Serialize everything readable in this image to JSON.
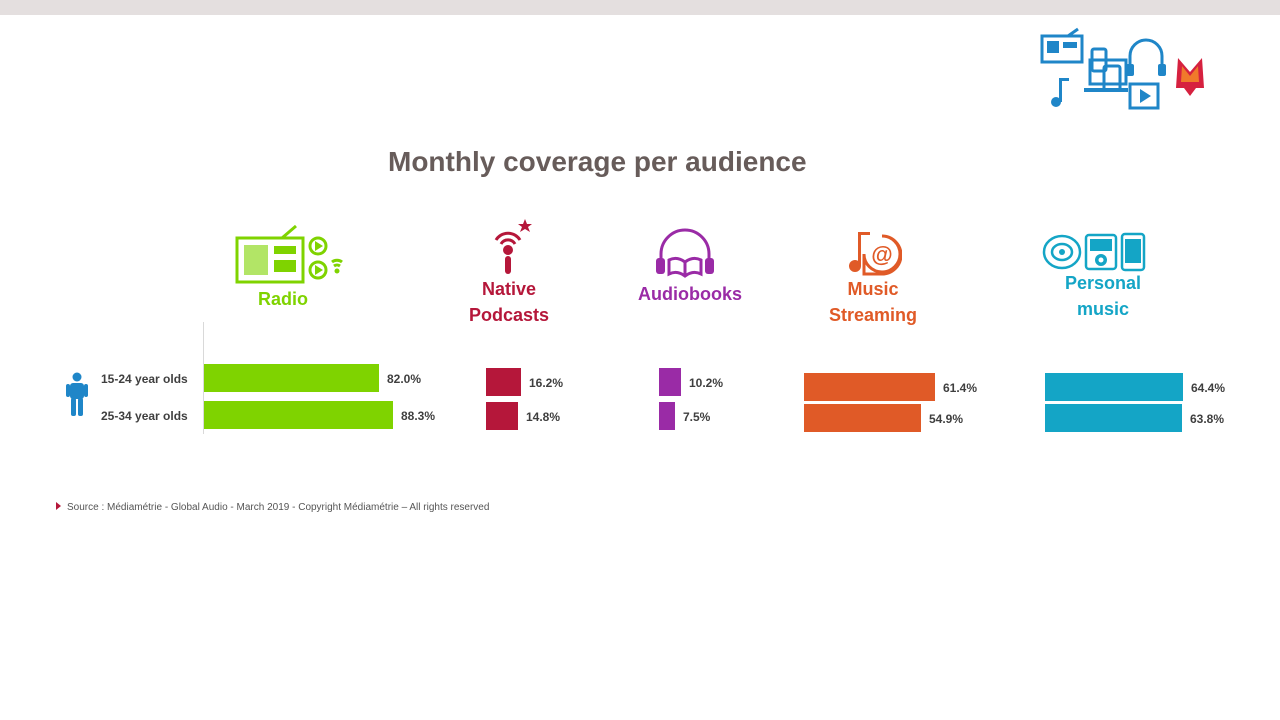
{
  "title": "Monthly coverage per audience",
  "source": "Source : Médiamétrie - Global Audio - March 2019 - Copyright Médiamétrie – All rights reserved",
  "colors": {
    "radio": "#7fd300",
    "podcasts": "#b5173a",
    "audiobooks": "#9a2ba6",
    "streaming": "#e05a27",
    "personal": "#14a5c6",
    "title": "#675c5a",
    "logo_blue": "#1f86c8",
    "logo_red": "#d6213f"
  },
  "icons": {
    "radio": "radio-icon",
    "podcasts": "microphone-signal-icon",
    "audiobooks": "headphones-book-icon",
    "streaming": "music-note-at-icon",
    "personal": "cd-ipod-phone-icon",
    "person": "person-icon",
    "logo": "mediametrie-logo-icon"
  },
  "chart_data": {
    "type": "bar",
    "orientation": "horizontal",
    "title": "Monthly coverage per audience",
    "categories": [
      "15-24 year olds",
      "25-34 year olds"
    ],
    "series": [
      {
        "name": "Radio",
        "values": [
          82.0,
          88.3
        ],
        "labels": [
          "82.0%",
          "88.3%"
        ]
      },
      {
        "name": "Native Podcasts",
        "values": [
          16.2,
          14.8
        ],
        "labels": [
          "16.2%",
          "14.8%"
        ]
      },
      {
        "name": "Audiobooks",
        "values": [
          10.2,
          7.5
        ],
        "labels": [
          "10.2%",
          "7.5%"
        ]
      },
      {
        "name": "Music Streaming",
        "values": [
          61.4,
          54.9
        ],
        "labels": [
          "61.4%",
          "54.9%"
        ]
      },
      {
        "name": "Personal music",
        "values": [
          64.4,
          63.8
        ],
        "labels": [
          "64.4%",
          "63.8%"
        ]
      }
    ],
    "unit": "%",
    "grid": false
  }
}
